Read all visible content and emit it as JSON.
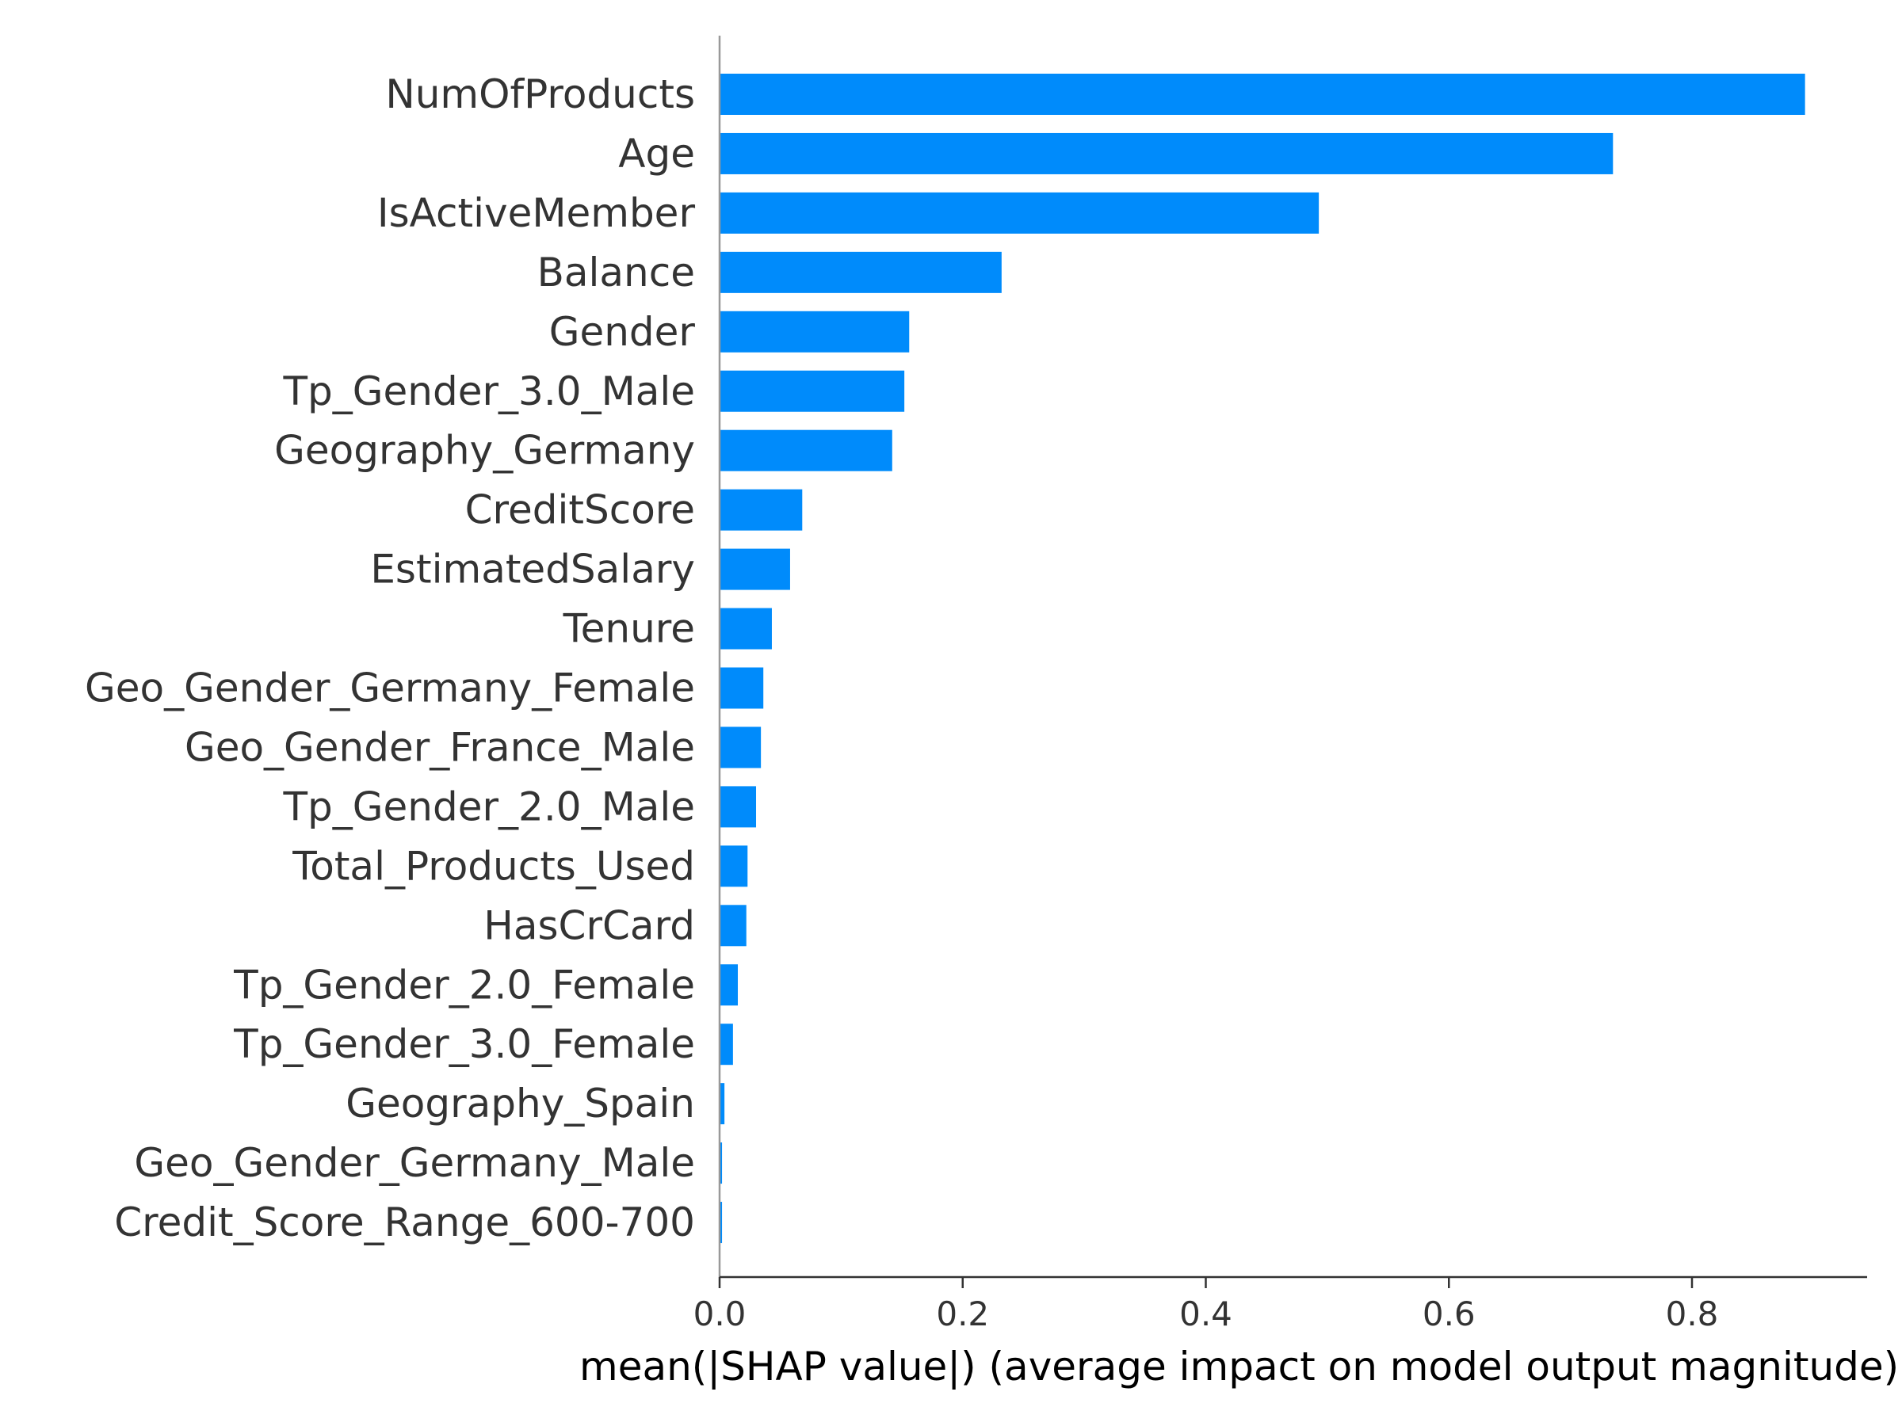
{
  "chart_data": {
    "type": "bar",
    "orientation": "horizontal",
    "categories": [
      "NumOfProducts",
      "Age",
      "IsActiveMember",
      "Balance",
      "Gender",
      "Tp_Gender_3.0_Male",
      "Geography_Germany",
      "CreditScore",
      "EstimatedSalary",
      "Tenure",
      "Geo_Gender_Germany_Female",
      "Geo_Gender_France_Male",
      "Tp_Gender_2.0_Male",
      "Total_Products_Used",
      "HasCrCard",
      "Tp_Gender_2.0_Female",
      "Tp_Gender_3.0_Female",
      "Geography_Spain",
      "Geo_Gender_Germany_Male",
      "Credit_Score_Range_600-700"
    ],
    "values": [
      0.893,
      0.735,
      0.493,
      0.232,
      0.156,
      0.152,
      0.142,
      0.068,
      0.058,
      0.043,
      0.036,
      0.034,
      0.03,
      0.023,
      0.022,
      0.015,
      0.011,
      0.004,
      0.002,
      0.002
    ],
    "xlabel": "mean(|SHAP value|) (average impact on model output magnitude)",
    "xlim": [
      0,
      0.94
    ],
    "xticks": [
      "0.0",
      "0.2",
      "0.4",
      "0.6",
      "0.8"
    ],
    "xtick_values": [
      0,
      0.2,
      0.4,
      0.6,
      0.8
    ],
    "bar_color": "#008bfb",
    "grid": false
  }
}
